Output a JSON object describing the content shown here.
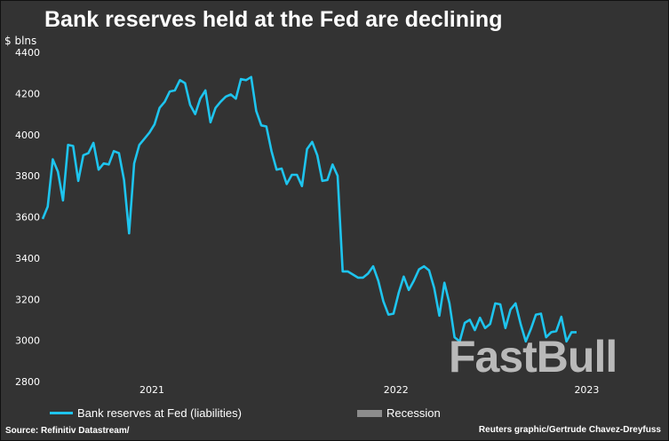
{
  "chart_data": {
    "type": "line",
    "title": "Bank reserves held at the Fed are declining",
    "ylabel": "$ blns",
    "ylim": [
      2800,
      4400
    ],
    "yticks": [
      2800,
      3000,
      3200,
      3400,
      3600,
      3800,
      4000,
      4200,
      4400
    ],
    "xticks": [
      {
        "label": "2021",
        "index": 21.5
      },
      {
        "label": "2022",
        "index": 69.5
      },
      {
        "label": "2023",
        "index": 107
      }
    ],
    "grid": false,
    "legend_position": "bottom",
    "series": [
      {
        "name": "Bank reserves at Fed (liabilities)",
        "color": "#1ec4ee",
        "values": [
          3590,
          3650,
          3880,
          3820,
          3680,
          3950,
          3945,
          3775,
          3900,
          3910,
          3960,
          3830,
          3860,
          3855,
          3920,
          3910,
          3780,
          3520,
          3860,
          3950,
          3980,
          4010,
          4050,
          4130,
          4160,
          4210,
          4215,
          4265,
          4250,
          4145,
          4100,
          4175,
          4215,
          4060,
          4130,
          4160,
          4185,
          4195,
          4175,
          4270,
          4265,
          4280,
          4115,
          4045,
          4040,
          3920,
          3830,
          3835,
          3760,
          3805,
          3805,
          3750,
          3930,
          3965,
          3900,
          3775,
          3780,
          3855,
          3800,
          3335,
          3335,
          3320,
          3305,
          3305,
          3325,
          3360,
          3290,
          3190,
          3125,
          3130,
          3230,
          3310,
          3245,
          3290,
          3345,
          3360,
          3340,
          3255,
          3120,
          3280,
          3180,
          3015,
          2995,
          3085,
          3100,
          3050,
          3110,
          3060,
          3080,
          3180,
          3175,
          3060,
          3150,
          3180,
          3080,
          2995,
          3055,
          3125,
          3130,
          3015,
          3040,
          3045,
          3115,
          2995,
          3040,
          3040
        ]
      }
    ],
    "legend": [
      {
        "label": "Bank reserves at Fed (liabilities)",
        "color": "#1ec4ee"
      },
      {
        "label": "Recession",
        "color": "#8c8c8c"
      }
    ]
  },
  "footer": {
    "source": "Source: Refinitiv Datastream/",
    "credit": "Reuters graphic/Gertrude Chavez-Dreyfuss"
  },
  "watermark": "FastBull"
}
